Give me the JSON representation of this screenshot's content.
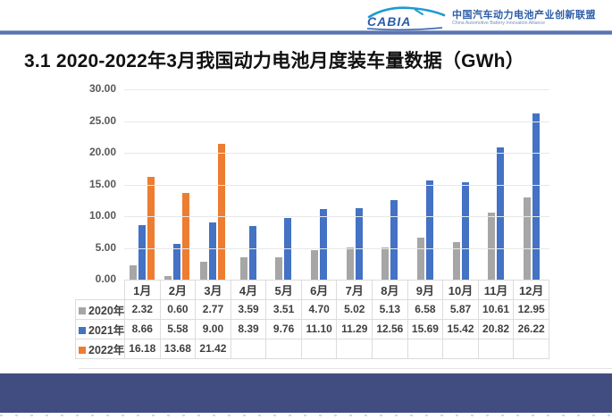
{
  "header": {
    "logo_text": "CABIA",
    "org_name_cn": "中国汽车动力电池产业创新联盟",
    "org_name_en": "China Automotive Battery Innovation Alliance"
  },
  "title": "3.1 2020-2022年3月我国动力电池月度装车量数据（GWh）",
  "colors": {
    "series_2020": "#a6a6a6",
    "series_2021": "#4472c4",
    "series_2022": "#ed7d31",
    "top_rule": "#5c74ae",
    "footer_bar": "#414d80",
    "gridline": "#e8e8e8",
    "table_border": "#dcdcdc"
  },
  "chart_data": {
    "type": "bar",
    "title": "3.1 2020-2022年3月我国动力电池月度装车量数据（GWh）",
    "categories": [
      "1月",
      "2月",
      "3月",
      "4月",
      "5月",
      "6月",
      "7月",
      "8月",
      "9月",
      "10月",
      "11月",
      "12月"
    ],
    "series": [
      {
        "name": "2020年",
        "color": "#a6a6a6",
        "values": [
          2.32,
          0.6,
          2.77,
          3.59,
          3.51,
          4.7,
          5.02,
          5.13,
          6.58,
          5.87,
          10.61,
          12.95
        ]
      },
      {
        "name": "2021年",
        "color": "#4472c4",
        "values": [
          8.66,
          5.58,
          9.0,
          8.39,
          9.76,
          11.1,
          11.29,
          12.56,
          15.69,
          15.42,
          20.82,
          26.22
        ]
      },
      {
        "name": "2022年",
        "color": "#ed7d31",
        "values": [
          16.18,
          13.68,
          21.42,
          null,
          null,
          null,
          null,
          null,
          null,
          null,
          null,
          null
        ]
      }
    ],
    "ylim": [
      0,
      30
    ],
    "ytick_step": 5,
    "yticks": [
      "0.00",
      "5.00",
      "10.00",
      "15.00",
      "20.00",
      "25.00",
      "30.00"
    ],
    "grid": true,
    "legend_position": "table-left-column",
    "value_format": "2-decimals"
  }
}
